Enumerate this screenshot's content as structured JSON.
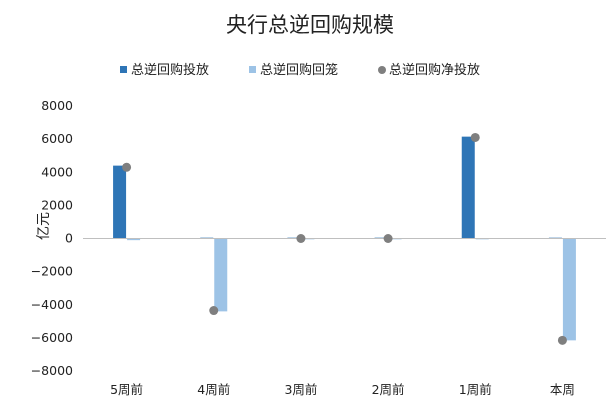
{
  "chart_data": {
    "type": "bar",
    "title": "央行总逆回购规模",
    "ylabel": "亿元",
    "xlabel": "",
    "categories": [
      "5周前",
      "4周前",
      "3周前",
      "2周前",
      "1周前",
      "本周"
    ],
    "ylim": [
      -8000,
      8000
    ],
    "yticks": [
      8000,
      6000,
      4000,
      2000,
      0,
      -2000,
      -4000,
      -6000,
      -8000
    ],
    "ytick_labels": [
      "8000",
      "6000",
      "4000",
      "2000",
      "0",
      "−2000",
      "−4000",
      "−6000",
      "−8000"
    ],
    "grid": false,
    "legend_position": "top",
    "series": [
      {
        "name": "总逆回购投放",
        "kind": "bar",
        "color": "#2E75B6",
        "values": [
          4400,
          50,
          50,
          50,
          6150,
          0
        ]
      },
      {
        "name": "总逆回购回笼",
        "kind": "bar",
        "color": "#9DC3E6",
        "values": [
          -100,
          -4400,
          -50,
          -50,
          -50,
          -6150
        ]
      },
      {
        "name": "总逆回购净投放",
        "kind": "scatter",
        "color": "#7F7F7F",
        "values": [
          4300,
          -4350,
          0,
          0,
          6100,
          -6150
        ]
      }
    ]
  }
}
